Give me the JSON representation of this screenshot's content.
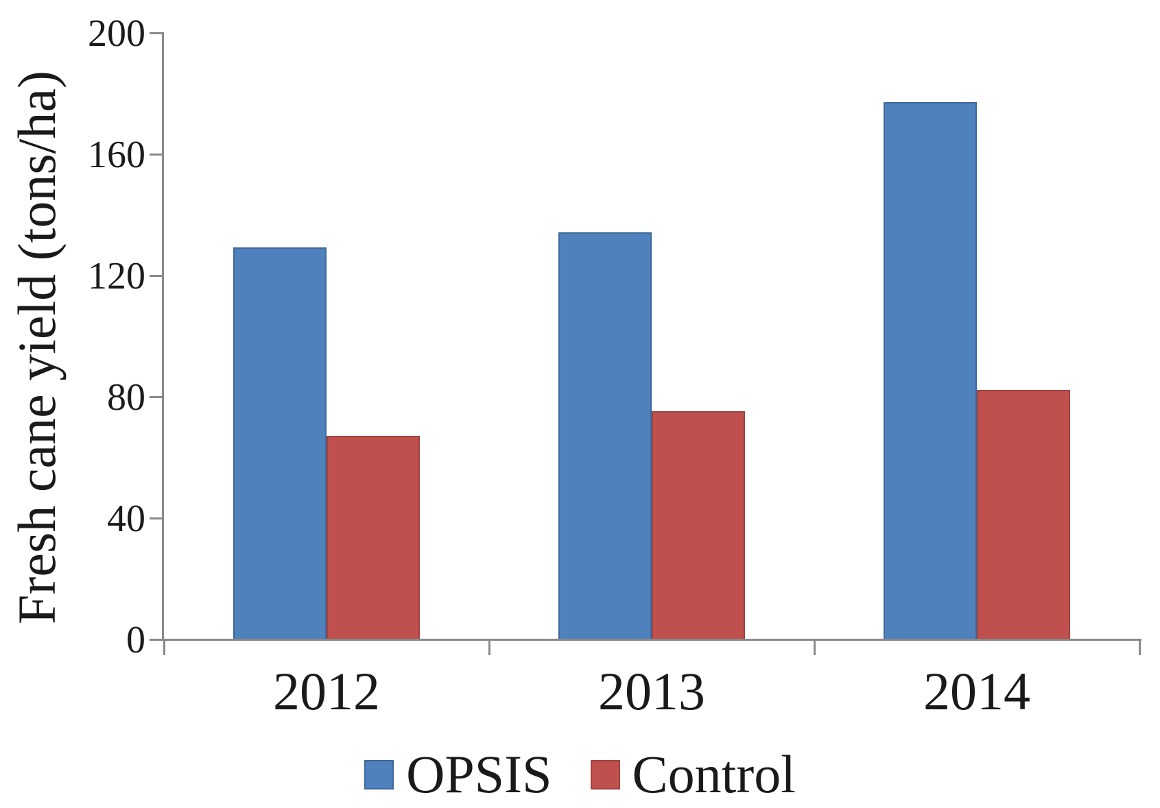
{
  "chart_data": {
    "type": "bar",
    "title": "",
    "categories": [
      "2012",
      "2013",
      "2014"
    ],
    "series": [
      {
        "name": "OPSIS",
        "color": "#4F81BD",
        "border_color": "#3E689E",
        "values": [
          129,
          134,
          177
        ]
      },
      {
        "name": "Control",
        "color": "#C0504D",
        "border_color": "#A04340",
        "values": [
          67,
          75,
          82
        ]
      }
    ],
    "xlabel": "",
    "ylabel": "Fresh cane yield (tons/ha)",
    "ylim": [
      0,
      200
    ],
    "yticks": [
      0,
      40,
      80,
      120,
      160,
      200
    ],
    "grid": false,
    "legend_position": "bottom-center",
    "colors": {
      "axis": "#898989",
      "text": "#1a1a1a"
    }
  }
}
